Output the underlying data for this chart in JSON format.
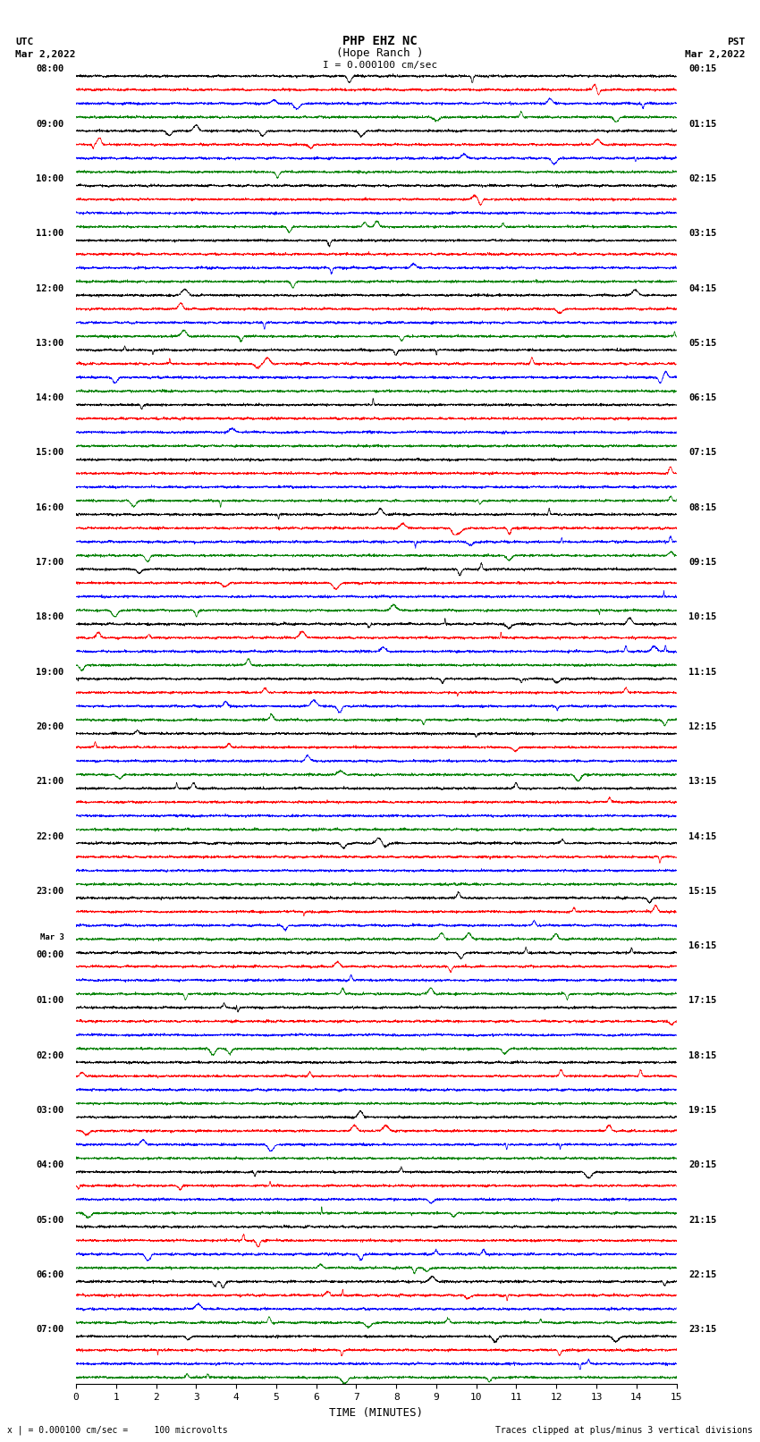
{
  "title_line1": "PHP EHZ NC",
  "title_line2": "(Hope Ranch )",
  "title_line3": "I = 0.000100 cm/sec",
  "utc_label": "UTC",
  "pst_label": "PST",
  "date_left": "Mar 2,2022",
  "date_right": "Mar 2,2022",
  "xlabel": "TIME (MINUTES)",
  "footer_left": "x | = 0.000100 cm/sec =     100 microvolts",
  "footer_right": "Traces clipped at plus/minus 3 vertical divisions",
  "utc_times": [
    "08:00",
    "09:00",
    "10:00",
    "11:00",
    "12:00",
    "13:00",
    "14:00",
    "15:00",
    "16:00",
    "17:00",
    "18:00",
    "19:00",
    "20:00",
    "21:00",
    "22:00",
    "23:00",
    "00:00",
    "01:00",
    "02:00",
    "03:00",
    "04:00",
    "05:00",
    "06:00",
    "07:00"
  ],
  "pst_times": [
    "00:15",
    "01:15",
    "02:15",
    "03:15",
    "04:15",
    "05:15",
    "06:15",
    "07:15",
    "08:15",
    "09:15",
    "10:15",
    "11:15",
    "12:15",
    "13:15",
    "14:15",
    "15:15",
    "16:15",
    "17:15",
    "18:15",
    "19:15",
    "20:15",
    "21:15",
    "22:15",
    "23:15"
  ],
  "mar3_row": 16,
  "n_rows": 24,
  "n_traces_per_row": 4,
  "trace_colors": [
    "black",
    "red",
    "blue",
    "green"
  ],
  "bg_color": "white",
  "minutes": 15,
  "n_samples": 3000
}
